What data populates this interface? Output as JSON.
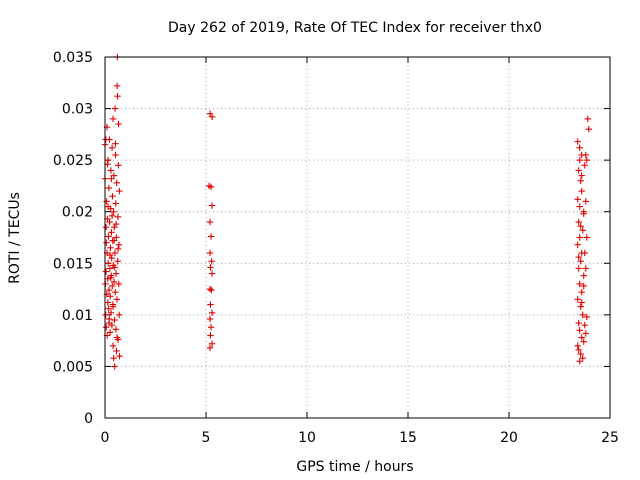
{
  "chart_data": {
    "type": "scatter",
    "title": "Day 262 of 2019, Rate Of TEC Index for receiver thx0",
    "xlabel": "GPS time / hours",
    "ylabel": "ROTI / TECUs",
    "xlim": [
      0,
      25
    ],
    "ylim": [
      0,
      0.035
    ],
    "xticks": [
      "0",
      "5",
      "10",
      "15",
      "20",
      "25"
    ],
    "yticks": [
      "0",
      "0.005",
      "0.01",
      "0.015",
      "0.02",
      "0.025",
      "0.03",
      "0.035"
    ],
    "grid": true,
    "marker": "+",
    "color": "#e00000",
    "series": [
      {
        "points": [
          [
            0.0,
            0.0265
          ],
          [
            0.0,
            0.0232
          ],
          [
            0.02,
            0.013
          ],
          [
            0.03,
            0.01
          ],
          [
            0.04,
            0.027
          ],
          [
            0.05,
            0.0142
          ],
          [
            0.06,
            0.0088
          ],
          [
            0.07,
            0.017
          ],
          [
            0.08,
            0.021
          ],
          [
            0.09,
            0.012
          ],
          [
            0.1,
            0.016
          ],
          [
            0.1,
            0.0282
          ],
          [
            0.11,
            0.008
          ],
          [
            0.12,
            0.0193
          ],
          [
            0.13,
            0.0135
          ],
          [
            0.14,
            0.0112
          ],
          [
            0.15,
            0.025
          ],
          [
            0.16,
            0.015
          ],
          [
            0.17,
            0.0176
          ],
          [
            0.18,
            0.0106
          ],
          [
            0.19,
            0.0223
          ],
          [
            0.2,
            0.0124
          ],
          [
            0.21,
            0.0096
          ],
          [
            0.22,
            0.027
          ],
          [
            0.23,
            0.019
          ],
          [
            0.24,
            0.0145
          ],
          [
            0.25,
            0.0083
          ],
          [
            0.26,
            0.0118
          ],
          [
            0.27,
            0.0165
          ],
          [
            0.28,
            0.0203
          ],
          [
            0.29,
            0.024
          ],
          [
            0.3,
            0.0102
          ],
          [
            0.31,
            0.0138
          ],
          [
            0.32,
            0.018
          ],
          [
            0.33,
            0.0155
          ],
          [
            0.34,
            0.009
          ],
          [
            0.35,
            0.0262
          ],
          [
            0.36,
            0.0128
          ],
          [
            0.37,
            0.0215
          ],
          [
            0.38,
            0.0172
          ],
          [
            0.39,
            0.011
          ],
          [
            0.4,
            0.007
          ],
          [
            0.4,
            0.029
          ],
          [
            0.41,
            0.0148
          ],
          [
            0.42,
            0.02
          ],
          [
            0.43,
            0.0058
          ],
          [
            0.44,
            0.0235
          ],
          [
            0.45,
            0.0132
          ],
          [
            0.46,
            0.0185
          ],
          [
            0.47,
            0.0095
          ],
          [
            0.48,
            0.005
          ],
          [
            0.49,
            0.016
          ],
          [
            0.5,
            0.03
          ],
          [
            0.51,
            0.0122
          ],
          [
            0.52,
            0.0255
          ],
          [
            0.53,
            0.0208
          ],
          [
            0.54,
            0.0086
          ],
          [
            0.55,
            0.014
          ],
          [
            0.56,
            0.0175
          ],
          [
            0.57,
            0.0065
          ],
          [
            0.58,
            0.0228
          ],
          [
            0.59,
            0.0115
          ],
          [
            0.6,
            0.0322
          ],
          [
            0.61,
            0.035
          ],
          [
            0.62,
            0.0312
          ],
          [
            0.63,
            0.0152
          ],
          [
            0.64,
            0.0195
          ],
          [
            0.65,
            0.0076
          ],
          [
            0.66,
            0.0245
          ],
          [
            0.67,
            0.0285
          ],
          [
            0.68,
            0.013
          ],
          [
            0.69,
            0.0168
          ],
          [
            0.7,
            0.01
          ],
          [
            0.71,
            0.022
          ],
          [
            0.72,
            0.006
          ],
          [
            0.05,
            0.0185
          ],
          [
            0.15,
            0.0205
          ],
          [
            0.25,
            0.0158
          ],
          [
            0.35,
            0.0196
          ],
          [
            0.45,
            0.0172
          ],
          [
            0.55,
            0.0188
          ],
          [
            0.65,
            0.0164
          ],
          [
            0.12,
            0.0246
          ],
          [
            0.32,
            0.0232
          ],
          [
            0.52,
            0.0266
          ],
          [
            0.2,
            0.0092
          ],
          [
            0.4,
            0.0108
          ],
          [
            0.6,
            0.0078
          ],
          [
            0.28,
            0.0136
          ],
          [
            0.48,
            0.0146
          ],
          [
            5.2,
            0.0295
          ],
          [
            5.3,
            0.0292
          ],
          [
            5.15,
            0.0225
          ],
          [
            5.25,
            0.0224
          ],
          [
            5.3,
            0.0206
          ],
          [
            5.2,
            0.019
          ],
          [
            5.25,
            0.0176
          ],
          [
            5.2,
            0.016
          ],
          [
            5.28,
            0.0152
          ],
          [
            5.22,
            0.0146
          ],
          [
            5.3,
            0.014
          ],
          [
            5.2,
            0.0125
          ],
          [
            5.27,
            0.0124
          ],
          [
            5.22,
            0.011
          ],
          [
            5.3,
            0.0102
          ],
          [
            5.2,
            0.0096
          ],
          [
            5.25,
            0.0088
          ],
          [
            5.22,
            0.008
          ],
          [
            5.3,
            0.0072
          ],
          [
            5.2,
            0.0068
          ],
          [
            23.4,
            0.0268
          ],
          [
            23.5,
            0.0262
          ],
          [
            23.45,
            0.024
          ],
          [
            23.55,
            0.023
          ],
          [
            23.6,
            0.022
          ],
          [
            23.4,
            0.0212
          ],
          [
            23.5,
            0.0205
          ],
          [
            23.7,
            0.0198
          ],
          [
            23.45,
            0.019
          ],
          [
            23.65,
            0.0182
          ],
          [
            23.5,
            0.0175
          ],
          [
            23.4,
            0.0168
          ],
          [
            23.6,
            0.016
          ],
          [
            23.55,
            0.0152
          ],
          [
            23.45,
            0.0145
          ],
          [
            23.7,
            0.0138
          ],
          [
            23.5,
            0.013
          ],
          [
            23.6,
            0.0122
          ],
          [
            23.4,
            0.0115
          ],
          [
            23.55,
            0.0108
          ],
          [
            23.65,
            0.01
          ],
          [
            23.45,
            0.0092
          ],
          [
            23.5,
            0.0085
          ],
          [
            23.6,
            0.0078
          ],
          [
            23.4,
            0.007
          ],
          [
            23.55,
            0.0062
          ],
          [
            23.5,
            0.0055
          ],
          [
            23.65,
            0.0058
          ],
          [
            23.45,
            0.0066
          ],
          [
            23.7,
            0.0074
          ],
          [
            23.9,
            0.029
          ],
          [
            23.95,
            0.028
          ],
          [
            23.8,
            0.0255
          ],
          [
            23.85,
            0.025
          ],
          [
            23.75,
            0.0245
          ],
          [
            23.6,
            0.0235
          ],
          [
            23.8,
            0.021
          ],
          [
            23.7,
            0.02
          ],
          [
            23.85,
            0.0175
          ],
          [
            23.75,
            0.016
          ],
          [
            23.8,
            0.0145
          ],
          [
            23.7,
            0.0128
          ],
          [
            23.85,
            0.0098
          ],
          [
            23.75,
            0.009
          ],
          [
            23.8,
            0.0082
          ],
          [
            23.5,
            0.025
          ],
          [
            23.6,
            0.0255
          ],
          [
            23.55,
            0.0186
          ],
          [
            23.45,
            0.0156
          ],
          [
            23.6,
            0.0112
          ]
        ]
      }
    ]
  }
}
